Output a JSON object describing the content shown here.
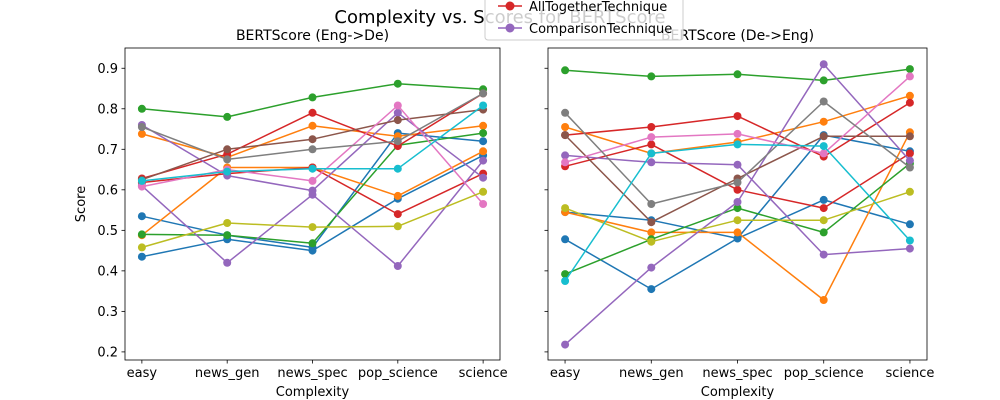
{
  "figure": {
    "suptitle": "Complexity vs. Scores for BERTScore",
    "legend_entries": [
      {
        "label": "AllTogetherTechnique",
        "color": "#d62728"
      },
      {
        "label": "ComparisonTechnique",
        "color": "#9467bd"
      }
    ]
  },
  "chart_data": [
    {
      "type": "line",
      "title": "BERTScore (Eng->De)",
      "xlabel": "Complexity",
      "ylabel": "Score",
      "categories": [
        "easy",
        "news_gen",
        "news_spec",
        "pop_science",
        "science"
      ],
      "ylim": [
        0.18,
        0.95
      ],
      "yticks": [
        "0.2",
        "0.3",
        "0.4",
        "0.5",
        "0.6",
        "0.7",
        "0.8",
        "0.9"
      ],
      "grid": false,
      "series": [
        {
          "color": "#1f77b4",
          "values": [
            0.435,
            0.478,
            0.45,
            0.578,
            0.685
          ]
        },
        {
          "color": "#1f77b4",
          "values": [
            0.535,
            0.488,
            0.458,
            0.74,
            0.72
          ]
        },
        {
          "color": "#ff7f0e",
          "values": [
            0.738,
            0.68,
            0.758,
            0.732,
            0.758
          ]
        },
        {
          "color": "#ff7f0e",
          "values": [
            0.488,
            0.655,
            0.655,
            0.585,
            0.695
          ]
        },
        {
          "color": "#2ca02c",
          "values": [
            0.8,
            0.78,
            0.828,
            0.862,
            0.848
          ]
        },
        {
          "color": "#2ca02c",
          "values": [
            0.49,
            0.488,
            0.468,
            0.71,
            0.74
          ]
        },
        {
          "color": "#d62728",
          "values": [
            0.628,
            0.688,
            0.79,
            0.708,
            0.838
          ]
        },
        {
          "color": "#d62728",
          "values": [
            0.618,
            0.64,
            0.655,
            0.54,
            0.64
          ]
        },
        {
          "color": "#9467bd",
          "values": [
            0.76,
            0.635,
            0.598,
            0.79,
            0.63
          ]
        },
        {
          "color": "#9467bd",
          "values": [
            0.61,
            0.42,
            0.588,
            0.412,
            0.672
          ]
        },
        {
          "color": "#8c564b",
          "values": [
            0.625,
            0.7,
            0.725,
            0.772,
            0.798
          ]
        },
        {
          "color": "#e377c2",
          "values": [
            0.608,
            0.65,
            0.622,
            0.808,
            0.565
          ]
        },
        {
          "color": "#7f7f7f",
          "values": [
            0.755,
            0.675,
            0.7,
            0.72,
            0.838
          ]
        },
        {
          "color": "#bcbd22",
          "values": [
            0.458,
            0.518,
            0.508,
            0.51,
            0.595
          ]
        },
        {
          "color": "#17becf",
          "values": [
            0.622,
            0.645,
            0.652,
            0.652,
            0.808
          ]
        }
      ]
    },
    {
      "type": "line",
      "title": "BERTScore (De->Eng)",
      "xlabel": "Complexity",
      "ylabel": "",
      "categories": [
        "easy",
        "news_gen",
        "news_spec",
        "pop_science",
        "science"
      ],
      "ylim": [
        0.18,
        0.95
      ],
      "yticks": [],
      "grid": false,
      "series": [
        {
          "color": "#1f77b4",
          "values": [
            0.478,
            0.355,
            0.48,
            0.575,
            0.515
          ]
        },
        {
          "color": "#1f77b4",
          "values": [
            0.545,
            0.525,
            0.48,
            0.735,
            0.695
          ]
        },
        {
          "color": "#ff7f0e",
          "values": [
            0.755,
            0.69,
            0.718,
            0.768,
            0.832
          ]
        },
        {
          "color": "#ff7f0e",
          "values": [
            0.545,
            0.495,
            0.495,
            0.328,
            0.742
          ]
        },
        {
          "color": "#2ca02c",
          "values": [
            0.895,
            0.88,
            0.885,
            0.87,
            0.898
          ]
        },
        {
          "color": "#2ca02c",
          "values": [
            0.392,
            0.478,
            0.555,
            0.495,
            0.665
          ]
        },
        {
          "color": "#d62728",
          "values": [
            0.658,
            0.712,
            0.6,
            0.555,
            0.69
          ]
        },
        {
          "color": "#d62728",
          "values": [
            0.735,
            0.755,
            0.782,
            0.682,
            0.815
          ]
        },
        {
          "color": "#9467bd",
          "values": [
            0.218,
            0.408,
            0.57,
            0.91,
            0.672
          ]
        },
        {
          "color": "#9467bd",
          "values": [
            0.685,
            0.668,
            0.662,
            0.44,
            0.455
          ]
        },
        {
          "color": "#8c564b",
          "values": [
            0.735,
            0.52,
            0.628,
            0.732,
            0.732
          ]
        },
        {
          "color": "#e377c2",
          "values": [
            0.668,
            0.73,
            0.738,
            0.69,
            0.88
          ]
        },
        {
          "color": "#7f7f7f",
          "values": [
            0.79,
            0.565,
            0.618,
            0.818,
            0.655
          ]
        },
        {
          "color": "#bcbd22",
          "values": [
            0.555,
            0.472,
            0.525,
            0.525,
            0.595
          ]
        },
        {
          "color": "#17becf",
          "values": [
            0.375,
            0.69,
            0.712,
            0.708,
            0.475
          ]
        }
      ]
    }
  ]
}
